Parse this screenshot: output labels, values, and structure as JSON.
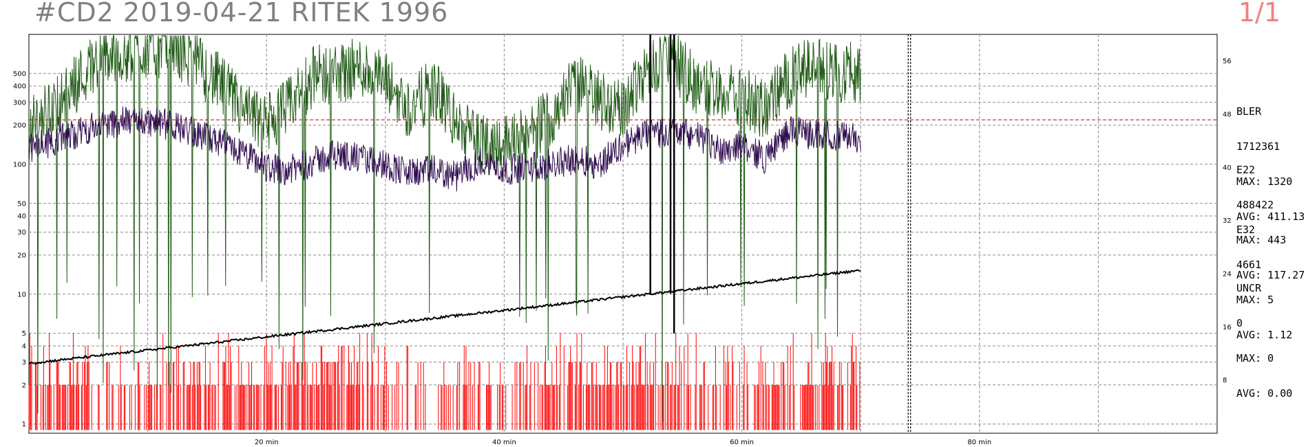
{
  "header": {
    "title": "#CD2 2019-04-21 RITEK 1996",
    "page": "1/1"
  },
  "chart_data": {
    "type": "line",
    "title": "#CD2 2019-04-21 RITEK 1996",
    "x_axis": {
      "unit": "min",
      "range": [
        0,
        100
      ],
      "ticks": [
        20,
        40,
        60,
        80
      ],
      "tick_labels": [
        "20 min",
        "40 min",
        "60 min",
        "80 min"
      ],
      "gridlines": [
        10,
        20,
        30,
        40,
        50,
        60,
        70,
        80,
        90
      ]
    },
    "y_axis_left": {
      "scale": "log",
      "range": [
        0.85,
        1000
      ],
      "ticks": [
        1,
        2,
        3,
        4,
        5,
        10,
        20,
        30,
        40,
        50,
        100,
        200,
        300,
        400,
        500
      ]
    },
    "y_axis_right": {
      "scale": "linear",
      "range": [
        0,
        60
      ],
      "ticks": [
        8,
        16,
        24,
        32,
        40,
        48,
        56
      ]
    },
    "disc_end_min": 70,
    "lead_out_markers_min": [
      74.0,
      74.2
    ],
    "threshold": {
      "value": 220,
      "color": "#cc0000",
      "style": "dashed"
    },
    "grid": true,
    "colors": {
      "bler": "#1e5a14",
      "e22": "#2e0b4e",
      "e32": "#ff0000",
      "speed": "#000000"
    },
    "series": [
      {
        "name": "BLER",
        "total": "1712361",
        "max": "MAX: 1320",
        "avg": "AVG: 411.13"
      },
      {
        "name": "E22",
        "total": "488422",
        "max": "MAX: 443",
        "avg": "AVG: 117.27"
      },
      {
        "name": "E32",
        "total": "4661",
        "max": "MAX: 5",
        "avg": "AVG: 1.12"
      },
      {
        "name": "UNCR",
        "total": "0",
        "max": "MAX: 0",
        "avg": "AVG: 0.00"
      }
    ],
    "bler_profile": {
      "x": [
        0,
        3,
        6,
        9,
        12,
        15,
        18,
        20,
        22,
        24,
        26,
        28,
        30,
        32,
        34,
        36,
        38,
        40,
        42,
        44,
        46,
        48,
        50,
        52,
        54,
        56,
        58,
        60,
        62,
        64,
        66,
        68,
        70
      ],
      "y": [
        180,
        320,
        650,
        750,
        820,
        500,
        250,
        200,
        280,
        480,
        500,
        560,
        420,
        260,
        380,
        200,
        140,
        150,
        160,
        240,
        420,
        320,
        250,
        560,
        650,
        420,
        380,
        330,
        260,
        460,
        560,
        500,
        520
      ]
    },
    "e22_profile": {
      "x": [
        0,
        3,
        6,
        9,
        12,
        15,
        18,
        20,
        22,
        24,
        26,
        28,
        30,
        32,
        34,
        36,
        38,
        40,
        42,
        44,
        46,
        48,
        50,
        52,
        54,
        56,
        58,
        60,
        62,
        64,
        66,
        68,
        70
      ],
      "y": [
        130,
        160,
        200,
        220,
        200,
        160,
        120,
        95,
        90,
        105,
        120,
        110,
        100,
        85,
        90,
        80,
        105,
        90,
        95,
        100,
        110,
        100,
        140,
        170,
        180,
        170,
        130,
        140,
        110,
        180,
        170,
        165,
        160
      ]
    },
    "speed_curve": {
      "x": [
        0,
        70
      ],
      "y": [
        10.5,
        24.5
      ]
    }
  }
}
